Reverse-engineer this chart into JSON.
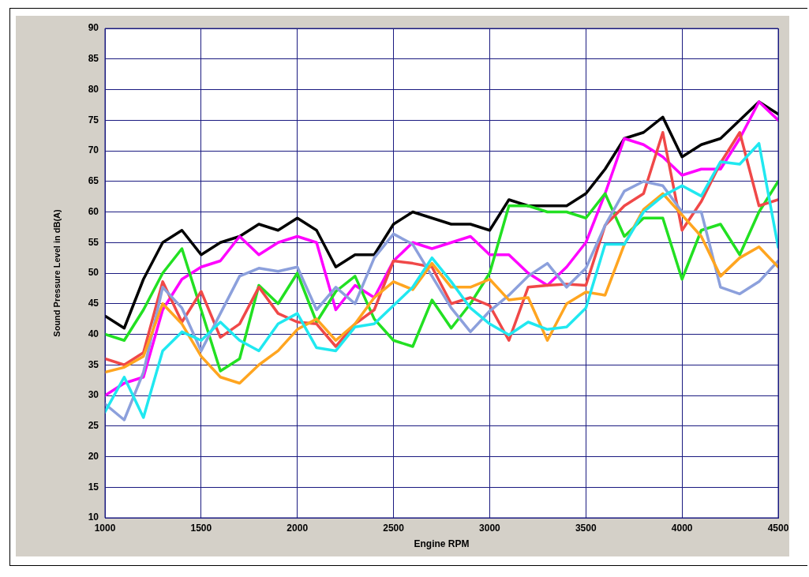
{
  "chart_data": {
    "type": "line",
    "xlabel": "Engine RPM",
    "ylabel": "Sound Pressure Level in dB(A)",
    "x": [
      1000,
      1100,
      1200,
      1300,
      1400,
      1500,
      1600,
      1700,
      1800,
      1900,
      2000,
      2100,
      2200,
      2300,
      2400,
      2500,
      2600,
      2700,
      2800,
      2900,
      3000,
      3100,
      3200,
      3300,
      3400,
      3500,
      3600,
      3700,
      3800,
      3900,
      4000,
      4100,
      4200,
      4300,
      4400,
      4500
    ],
    "series": [
      {
        "color": "#000000",
        "values": [
          43,
          41,
          49,
          55,
          57,
          53,
          55,
          56,
          58,
          57,
          59,
          57,
          51,
          53,
          53,
          58,
          60,
          59,
          58,
          58,
          57,
          62,
          61,
          61,
          61,
          63,
          67,
          72,
          73,
          75.5,
          69,
          71,
          72,
          75,
          78,
          76
        ]
      },
      {
        "color": "#ff00ff",
        "values": [
          30,
          32,
          33,
          44,
          49,
          51,
          52,
          56,
          53,
          55,
          56,
          55,
          44,
          48,
          46,
          52,
          55,
          54,
          55,
          56,
          53,
          53,
          50,
          48,
          51,
          55,
          63,
          72,
          71,
          69,
          66,
          67,
          67,
          72,
          78,
          75
        ]
      },
      {
        "color": "#22e022",
        "values": [
          40,
          39,
          44,
          50,
          54,
          44,
          34,
          36,
          48,
          45,
          50,
          42,
          47,
          49.5,
          42.5,
          39,
          38,
          45.6,
          41,
          45,
          50,
          61,
          61,
          60,
          60,
          59,
          63,
          56,
          59,
          59,
          49,
          57,
          58,
          53,
          60,
          65
        ]
      },
      {
        "color": "#f04848",
        "values": [
          36,
          35,
          37,
          48.6,
          42,
          47,
          39.5,
          41.7,
          47.7,
          43.4,
          42,
          41.7,
          38,
          41.7,
          44,
          52,
          51.6,
          51,
          45,
          46,
          44.7,
          39,
          47.7,
          48,
          48.2,
          48,
          57.8,
          61,
          63,
          73,
          57,
          61.7,
          68,
          73,
          61,
          62
        ]
      },
      {
        "color": "#8ca0dc",
        "values": [
          28.6,
          26,
          33.8,
          47.7,
          44.3,
          37.3,
          43.4,
          49.5,
          50.8,
          50.3,
          51,
          44,
          47.7,
          45,
          52.5,
          56.4,
          54.7,
          49.5,
          44.3,
          40.4,
          43.8,
          46.4,
          49.5,
          51.6,
          47.7,
          50.8,
          57.8,
          63.4,
          65,
          64.3,
          60,
          60,
          47.7,
          46.6,
          48.6,
          52
        ]
      },
      {
        "color": "#ffa520",
        "values": [
          33.8,
          34.6,
          36.4,
          45,
          41.7,
          36.4,
          33,
          32,
          35,
          37.3,
          40.8,
          42.5,
          39,
          41.7,
          46,
          48.6,
          47.3,
          51.6,
          47.7,
          47.7,
          49,
          45.6,
          46,
          39,
          45,
          46.9,
          46.4,
          54.7,
          60.4,
          63,
          59.5,
          56,
          49.5,
          52.5,
          54.3,
          51
        ]
      },
      {
        "color": "#20e8f0",
        "values": [
          27.3,
          33,
          26.4,
          37.3,
          40.4,
          39,
          42,
          39,
          37.3,
          41.7,
          43.4,
          37.8,
          37.3,
          41.2,
          41.7,
          44.7,
          47.7,
          52.5,
          48.6,
          44.3,
          41.7,
          39.9,
          42,
          40.8,
          41.2,
          44.3,
          54.7,
          54.7,
          60,
          62.6,
          64.3,
          62.6,
          68.2,
          67.8,
          71.2,
          54.2
        ]
      }
    ],
    "xlim": [
      1000,
      4500
    ],
    "xticks": [
      1000,
      1500,
      2000,
      2500,
      3000,
      3500,
      4000,
      4500
    ],
    "ylim": [
      10,
      90
    ],
    "yticks": [
      10,
      15,
      20,
      25,
      30,
      35,
      40,
      45,
      50,
      55,
      60,
      65,
      70,
      75,
      80,
      85,
      90
    ],
    "grid": true,
    "marker": "none",
    "line_style": "solid"
  }
}
